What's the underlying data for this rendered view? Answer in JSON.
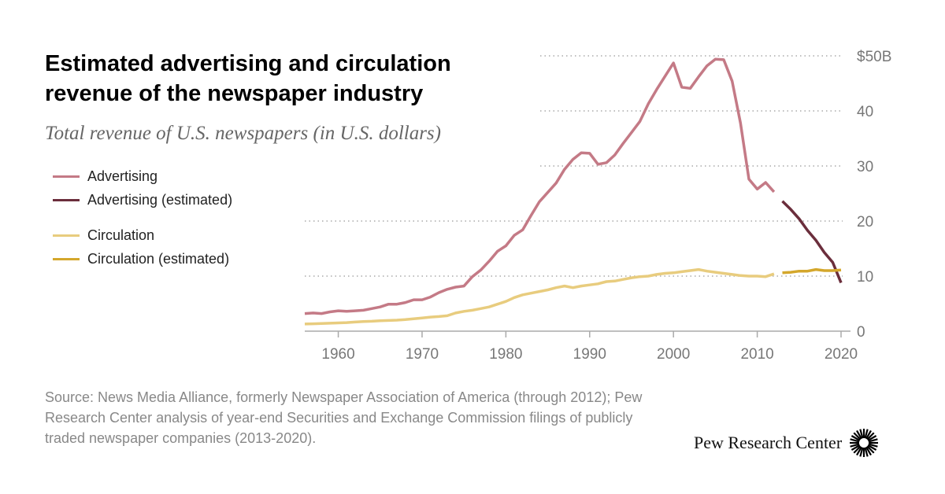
{
  "chart_data": {
    "type": "line",
    "title": "Estimated advertising and circulation revenue of the newspaper industry",
    "subtitle": "Total revenue of U.S. newspapers (in U.S. dollars)",
    "xlim": [
      1956,
      2020
    ],
    "ylim": [
      0,
      50
    ],
    "x_ticks": [
      1960,
      1970,
      1980,
      1990,
      2000,
      2010,
      2020
    ],
    "y_ticks": [
      {
        "v": 0,
        "label": "0"
      },
      {
        "v": 10,
        "label": "10"
      },
      {
        "v": 20,
        "label": "20"
      },
      {
        "v": 30,
        "label": "30"
      },
      {
        "v": 40,
        "label": "40"
      },
      {
        "v": 50,
        "label": "$50B"
      }
    ],
    "grid": "horizontal dotted",
    "legend_placement": "left",
    "series": [
      {
        "name": "Advertising",
        "color": "#c47a86",
        "x_start": 1956,
        "values": [
          3.2,
          3.3,
          3.2,
          3.5,
          3.7,
          3.6,
          3.7,
          3.8,
          4.1,
          4.4,
          4.9,
          4.9,
          5.2,
          5.7,
          5.7,
          6.2,
          7.0,
          7.6,
          8.0,
          8.2,
          9.9,
          11.1,
          12.7,
          14.5,
          15.5,
          17.4,
          18.4,
          21.0,
          23.5,
          25.2,
          26.9,
          29.4,
          31.2,
          32.4,
          32.3,
          30.3,
          30.6,
          32.0,
          34.1,
          36.1,
          38.1,
          41.3,
          43.9,
          46.3,
          48.7,
          44.3,
          44.1,
          46.2,
          48.2,
          49.4,
          49.3,
          45.4,
          37.8,
          27.6,
          25.8,
          27.0,
          25.3
        ]
      },
      {
        "name": "Advertising (estimated)",
        "color": "#6b2e3c",
        "x_start": 2013,
        "values": [
          23.6,
          22.1,
          20.4,
          18.3,
          16.5,
          14.3,
          12.5,
          8.8
        ]
      },
      {
        "name": "Circulation",
        "color": "#e8cc7e",
        "x_start": 1956,
        "values": [
          1.3,
          1.35,
          1.4,
          1.45,
          1.5,
          1.55,
          1.65,
          1.75,
          1.8,
          1.9,
          1.95,
          2.0,
          2.1,
          2.25,
          2.4,
          2.55,
          2.65,
          2.8,
          3.3,
          3.6,
          3.8,
          4.1,
          4.4,
          4.9,
          5.4,
          6.1,
          6.6,
          6.9,
          7.2,
          7.5,
          7.9,
          8.2,
          7.9,
          8.2,
          8.4,
          8.6,
          9.0,
          9.1,
          9.4,
          9.7,
          9.9,
          10.0,
          10.3,
          10.5,
          10.6,
          10.8,
          11.0,
          11.2,
          10.9,
          10.7,
          10.5,
          10.3,
          10.1,
          10.0,
          10.0,
          9.9,
          10.4
        ]
      },
      {
        "name": "Circulation (estimated)",
        "color": "#d4a72c",
        "x_start": 2013,
        "values": [
          10.6,
          10.7,
          10.9,
          10.9,
          11.2,
          11.0,
          11.0,
          11.1
        ]
      }
    ]
  },
  "source": "Source: News Media Alliance, formerly Newspaper Association of America (through 2012); Pew Research Center analysis of year-end Securities and Exchange Commission filings of publicly traded newspaper companies (2013-2020).",
  "logo_text": "Pew Research Center"
}
